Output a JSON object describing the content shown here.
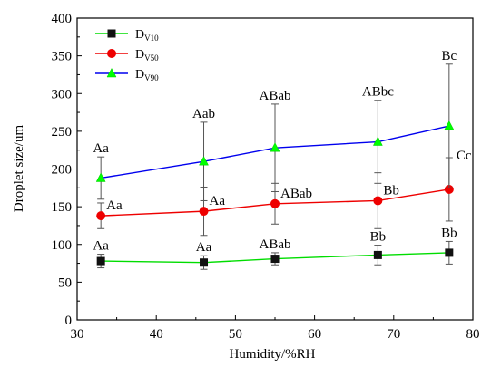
{
  "chart_data": {
    "type": "line",
    "title": "",
    "xlabel": "Humidity/%RH",
    "ylabel": "Droplet size/um",
    "xlim": [
      30,
      80
    ],
    "ylim": [
      0,
      400
    ],
    "xticks": [
      30,
      40,
      50,
      60,
      70,
      80
    ],
    "yticks": [
      0,
      50,
      100,
      150,
      200,
      250,
      300,
      350,
      400
    ],
    "x": [
      33,
      46,
      55,
      68,
      77
    ],
    "grid": false,
    "legend_position": "top-left",
    "series": [
      {
        "name": "D",
        "name_sub": "V10",
        "color": "#00dd00",
        "marker": "square",
        "values": [
          78,
          76,
          81,
          86,
          89
        ],
        "errors": [
          9,
          9,
          8,
          13,
          15
        ],
        "annotations": [
          "Aa",
          "Aa",
          "ABab",
          "Bb",
          "Bb"
        ]
      },
      {
        "name": "D",
        "name_sub": "V50",
        "color": "#ee0000",
        "marker": "circle",
        "values": [
          138,
          144,
          154,
          158,
          173
        ],
        "errors": [
          17,
          32,
          27,
          37,
          42
        ],
        "annotations": [
          "Aa",
          "Aa",
          "ABab",
          "Bb",
          "Cc"
        ]
      },
      {
        "name": "D",
        "name_sub": "V90",
        "color": "#0000ee",
        "marker": "triangle",
        "values": [
          188,
          210,
          228,
          236,
          257
        ],
        "errors": [
          28,
          52,
          58,
          55,
          82
        ],
        "annotations": [
          "Aa",
          "Aab",
          "ABab",
          "ABbc",
          "Bc"
        ]
      }
    ]
  }
}
